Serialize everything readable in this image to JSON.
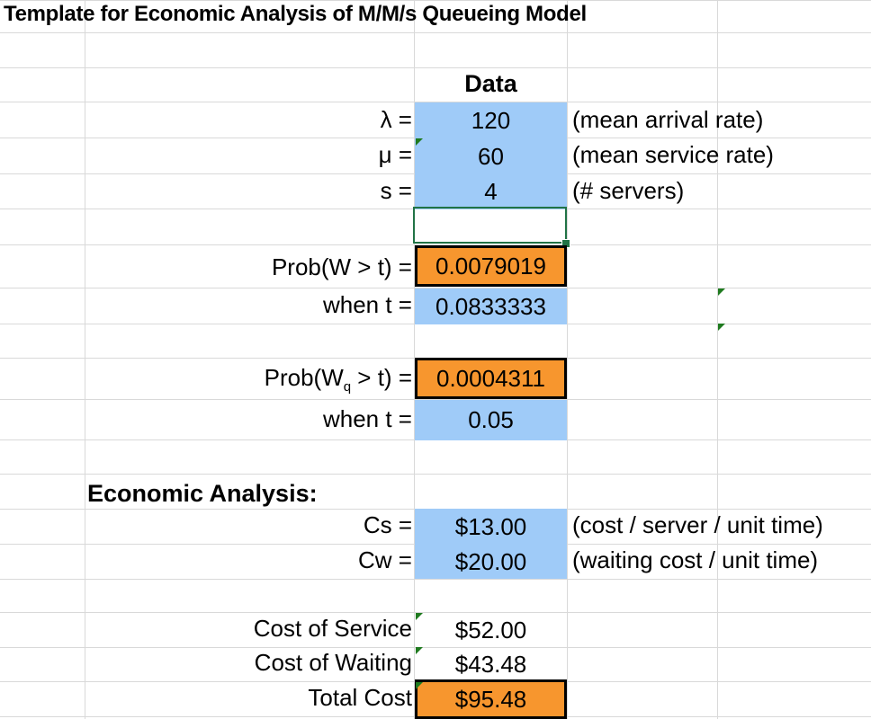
{
  "sheet": {
    "title": "Template for Economic Analysis of M/M/s Queueing Model",
    "data_header": "Data",
    "inputs": [
      {
        "label": "λ =",
        "value": "120",
        "note": "(mean arrival rate)"
      },
      {
        "label": "μ =",
        "value": "60",
        "note": "(mean service rate)"
      },
      {
        "label": "s =",
        "value": "4",
        "note": "(# servers)"
      }
    ],
    "prob_w": {
      "label": "Prob(W > t) =",
      "value": "0.0079019",
      "when_label": "when t =",
      "when_value": "0.0833333"
    },
    "prob_wq": {
      "label_pre": "Prob(W",
      "label_sub": "q",
      "label_post": " > t) =",
      "value": "0.0004311",
      "when_label": "when t =",
      "when_value": "0.05"
    },
    "economic": {
      "header": "Economic Analysis:",
      "cs": {
        "label": "Cs =",
        "value": "$13.00",
        "note": "(cost / server / unit time)"
      },
      "cw": {
        "label": "Cw =",
        "value": "$20.00",
        "note": "(waiting cost / unit time)"
      }
    },
    "costs": {
      "service": {
        "label": "Cost of Service",
        "value": "$52.00"
      },
      "waiting": {
        "label": "Cost of Waiting",
        "value": "$43.48"
      },
      "total": {
        "label": "Total Cost",
        "value": "$95.48"
      }
    }
  },
  "colors": {
    "input_fill": "#9fcbf8",
    "output_fill": "#f7962e",
    "selection": "#217346"
  }
}
